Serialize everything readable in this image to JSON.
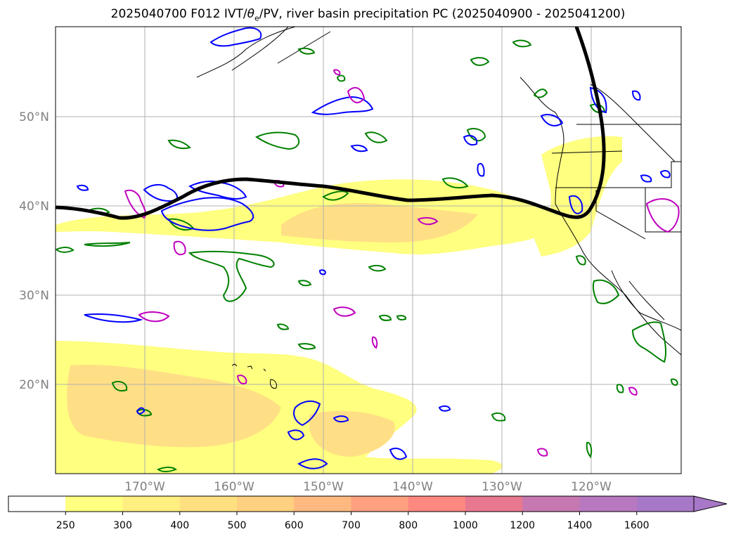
{
  "title": {
    "prefix": "2025040700 F012 IVT/",
    "theta": "θ",
    "theta_sub": "e",
    "suffix": "/PV, river basin precipitation PC (2025040900 - 2025041200)"
  },
  "map": {
    "lon_range": [
      -180,
      -110
    ],
    "lat_range": [
      10,
      60
    ],
    "latitude_ticks": [
      {
        "value": 50,
        "label": "50°N"
      },
      {
        "value": 40,
        "label": "40°N"
      },
      {
        "value": 30,
        "label": "30°N"
      },
      {
        "value": 20,
        "label": "20°N"
      }
    ],
    "longitude_ticks": [
      {
        "value": -170,
        "label": "170°W"
      },
      {
        "value": -160,
        "label": "160°W"
      },
      {
        "value": -150,
        "label": "150°W"
      },
      {
        "value": -140,
        "label": "140°W"
      },
      {
        "value": -130,
        "label": "130°W"
      },
      {
        "value": -120,
        "label": "120°W"
      }
    ],
    "gridlines": true,
    "colors": {
      "ivt_low": "#ffff80",
      "ivt_mid": "#ffd98a",
      "ivt_high": "#ffc080",
      "theta_contour": "#008000",
      "pv_contour": "#0000ff",
      "magenta_contour": "#c000c0",
      "pv_line": "#000000",
      "coast": "#000000"
    }
  },
  "colorbar": {
    "levels": [
      "250",
      "300",
      "400",
      "500",
      "600",
      "700",
      "800",
      "1000",
      "1200",
      "1400",
      "1600"
    ],
    "colors": [
      "#ffffff",
      "#ffff80",
      "#ffef80",
      "#ffe080",
      "#ffd080",
      "#ffb880",
      "#ffa080",
      "#ff8880",
      "#e87890",
      "#c878b0",
      "#b878c0",
      "#a878c8"
    ],
    "extend": "max"
  }
}
